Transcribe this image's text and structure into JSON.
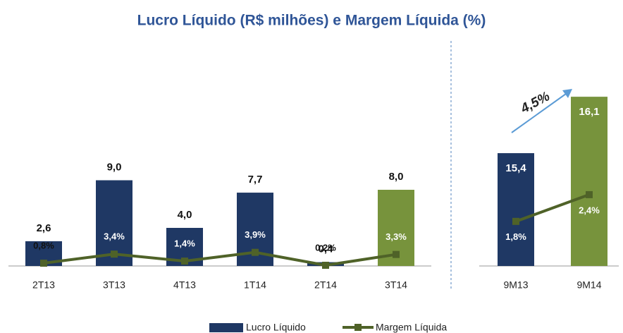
{
  "title": "Lucro Líquido (R$ milhões) e Margem Líquida (%)",
  "chart_data": [
    {
      "type": "bar-line",
      "categories": [
        "2T13",
        "3T13",
        "4T13",
        "1T14",
        "2T14",
        "3T14"
      ],
      "series": [
        {
          "name": "Lucro Líquido",
          "color": "#1f3864",
          "colors": [
            "#1f3864",
            "#1f3864",
            "#1f3864",
            "#1f3864",
            "#1f3864",
            "#77933c"
          ],
          "values": [
            2.6,
            9.0,
            4.0,
            7.7,
            0.4,
            8.0
          ],
          "value_labels": [
            "2,6",
            "9,0",
            "4,0",
            "7,7",
            "0,4",
            "8,0"
          ]
        },
        {
          "name": "Margem Líquida",
          "color": "#4f6228",
          "axis": "y2",
          "values": [
            0.8,
            3.4,
            1.4,
            3.9,
            0.2,
            3.3
          ],
          "value_labels": [
            "0,8%",
            "3,4%",
            "1,4%",
            "3,9%",
            "0,2%",
            "3,3%"
          ]
        }
      ],
      "ylim": [
        0,
        22
      ],
      "y2lim": [
        0,
        60
      ]
    },
    {
      "type": "bar-line",
      "categories": [
        "9M13",
        "9M14"
      ],
      "annotation": "4,5%",
      "series": [
        {
          "colors": [
            "#1f3864",
            "#77933c"
          ],
          "values": [
            15.4,
            16.1
          ],
          "value_labels": [
            "15,4",
            "16,1"
          ]
        },
        {
          "color": "#4f6228",
          "axis": "y2",
          "values": [
            1.8,
            2.4
          ],
          "value_labels": [
            "1,8%",
            "2,4%"
          ]
        }
      ],
      "ylim": [
        14,
        16.6
      ],
      "y2lim": [
        0.8,
        5.5
      ]
    }
  ]
}
